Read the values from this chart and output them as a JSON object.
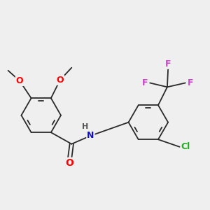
{
  "background_color": "#efefef",
  "bond_color": "#2a2a2a",
  "atom_colors": {
    "O": "#ff0000",
    "N": "#1010cc",
    "F": "#cc44cc",
    "Cl": "#22aa22",
    "H": "#555555",
    "C": "#2a2a2a"
  },
  "figsize": [
    3.0,
    3.0
  ],
  "dpi": 100
}
